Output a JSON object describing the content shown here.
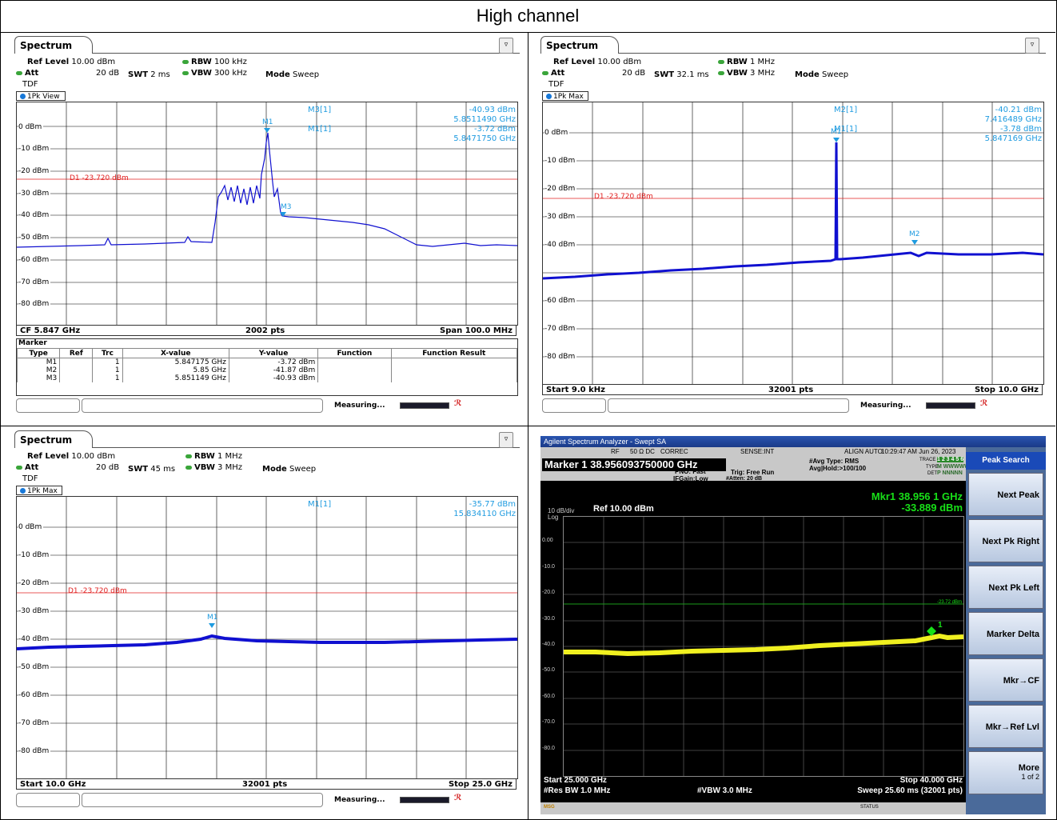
{
  "page_title": "High channel",
  "panels": [
    {
      "tab": "Spectrum",
      "ref_level_label": "Ref Level",
      "ref_level": "10.00 dBm",
      "att_label": "Att",
      "att": "20 dB",
      "swt_label": "SWT",
      "swt": "2 ms",
      "rbw_label": "RBW",
      "rbw": "100 kHz",
      "vbw_label": "VBW",
      "vbw": "300 kHz",
      "mode_label": "Mode",
      "mode": "Sweep",
      "tdf": "TDF",
      "view": "1Pk View",
      "y_ticks": [
        "0 dBm",
        "-10 dBm",
        "-20 dBm",
        "-30 dBm",
        "-40 dBm",
        "-50 dBm",
        "-60 dBm",
        "-70 dBm",
        "-80 dBm"
      ],
      "d1_label": "D1  -23.720 dBm",
      "readouts": [
        {
          "name": "M3[1]",
          "level": "-40.93 dBm",
          "freq": "5.8511490 GHz"
        },
        {
          "name": "M1[1]",
          "level": "-3.72 dBm",
          "freq": "5.8471750 GHz"
        }
      ],
      "marker_tags": [
        "M1",
        "M3"
      ],
      "footer_left": "CF 5.847 GHz",
      "footer_mid": "2002 pts",
      "footer_right": "Span 100.0 MHz",
      "marker_table": {
        "title": "Marker",
        "headers": [
          "Type",
          "Ref",
          "Trc",
          "X-value",
          "Y-value",
          "Function",
          "Function Result"
        ],
        "rows": [
          [
            "M1",
            "",
            "1",
            "5.847175 GHz",
            "-3.72 dBm",
            "",
            ""
          ],
          [
            "M2",
            "",
            "1",
            "5.85 GHz",
            "-41.87 dBm",
            "",
            ""
          ],
          [
            "M3",
            "",
            "1",
            "5.851149 GHz",
            "-40.93 dBm",
            "",
            ""
          ]
        ]
      },
      "status": "Measuring..."
    },
    {
      "tab": "Spectrum",
      "ref_level_label": "Ref Level",
      "ref_level": "10.00 dBm",
      "att_label": "Att",
      "att": "20 dB",
      "swt_label": "SWT",
      "swt": "32.1 ms",
      "rbw_label": "RBW",
      "rbw": "1 MHz",
      "vbw_label": "VBW",
      "vbw": "3 MHz",
      "mode_label": "Mode",
      "mode": "Sweep",
      "tdf": "TDF",
      "view": "1Pk Max",
      "y_ticks": [
        "0 dBm",
        "-10 dBm",
        "-20 dBm",
        "-30 dBm",
        "-40 dBm",
        "-50 dBm",
        "-60 dBm",
        "-70 dBm",
        "-80 dBm"
      ],
      "d1_label": "D1  -23.720 dBm",
      "readouts": [
        {
          "name": "M2[1]",
          "level": "-40.21 dBm",
          "freq": "7.416489 GHz"
        },
        {
          "name": "M1[1]",
          "level": "-3.78 dBm",
          "freq": "5.847169 GHz"
        }
      ],
      "marker_tags": [
        "M1",
        "M2"
      ],
      "footer_left": "Start 9.0 kHz",
      "footer_mid": "32001 pts",
      "footer_right": "Stop 10.0 GHz",
      "status": "Measuring..."
    },
    {
      "tab": "Spectrum",
      "ref_level_label": "Ref Level",
      "ref_level": "10.00 dBm",
      "att_label": "Att",
      "att": "20 dB",
      "swt_label": "SWT",
      "swt": "45 ms",
      "rbw_label": "RBW",
      "rbw": "1 MHz",
      "vbw_label": "VBW",
      "vbw": "3 MHz",
      "mode_label": "Mode",
      "mode": "Sweep",
      "tdf": "TDF",
      "view": "1Pk Max",
      "y_ticks": [
        "0 dBm",
        "-10 dBm",
        "-20 dBm",
        "-30 dBm",
        "-40 dBm",
        "-50 dBm",
        "-60 dBm",
        "-70 dBm",
        "-80 dBm"
      ],
      "d1_label": "D1  -23.720 dBm",
      "readouts": [
        {
          "name": "M1[1]",
          "level": "-35.77 dBm",
          "freq": "15.834110 GHz"
        }
      ],
      "marker_tags": [
        "M1"
      ],
      "footer_left": "Start 10.0 GHz",
      "footer_mid": "32001 pts",
      "footer_right": "Stop 25.0 GHz",
      "status": "Measuring..."
    }
  ],
  "agilent": {
    "title": "Agilent Spectrum Analyzer - Swept SA",
    "top_items": [
      "RF",
      "50 Ω  DC",
      "CORREC",
      "SENSE:INT",
      "ALIGN AUTO",
      "10:29:47 AM Jun 26, 2023"
    ],
    "marker": "Marker 1 38.956093750000 GHz",
    "pno": "PNO: Fast",
    "ifgain": "IFGain:Low",
    "trig": "Trig: Free Run",
    "atten": "#Atten: 20 dB",
    "avg_type": "#Avg Type: RMS",
    "avg_hold": "Avg|Hold:>100/100",
    "trace": "TRACE",
    "trace_nums": "1 2 3 4 5 6",
    "type": "TYPE",
    "type_val": "M WWWWW",
    "det": "DET",
    "det_val": "P NNNNN",
    "scale": "10 dB/div",
    "log": "Log",
    "ref": "Ref 10.00 dBm",
    "mkr_freq": "Mkr1 38.956 1 GHz",
    "mkr_level": "-33.889 dBm",
    "y_ticks": [
      "0.00",
      "-10.0",
      "-20.0",
      "-30.0",
      "-40.0",
      "-50.0",
      "-60.0",
      "-70.0",
      "-80.0"
    ],
    "dline_label": "-23.72 dBm",
    "marker_num": "1",
    "start": "Start 25.000 GHz",
    "stop": "Stop 40.000 GHz",
    "rbw": "#Res BW 1.0 MHz",
    "vbw": "#VBW 3.0 MHz",
    "sweep": "Sweep  25.60 ms (32001 pts)",
    "msg": "MSG",
    "status": "STATUS",
    "softkeys": {
      "header": "Peak Search",
      "buttons": [
        "Next Peak",
        "Next Pk Right",
        "Next Pk Left",
        "Marker Delta",
        "Mkr→CF",
        "Mkr→Ref Lvl",
        "More"
      ],
      "more_sub": "1 of 2"
    }
  },
  "colors": {
    "trace_rs": "#1010d0",
    "marker": "#1e9be0",
    "dline": "#e02020",
    "agilent_trace": "#f0f020",
    "agilent_text": "#18e018"
  }
}
